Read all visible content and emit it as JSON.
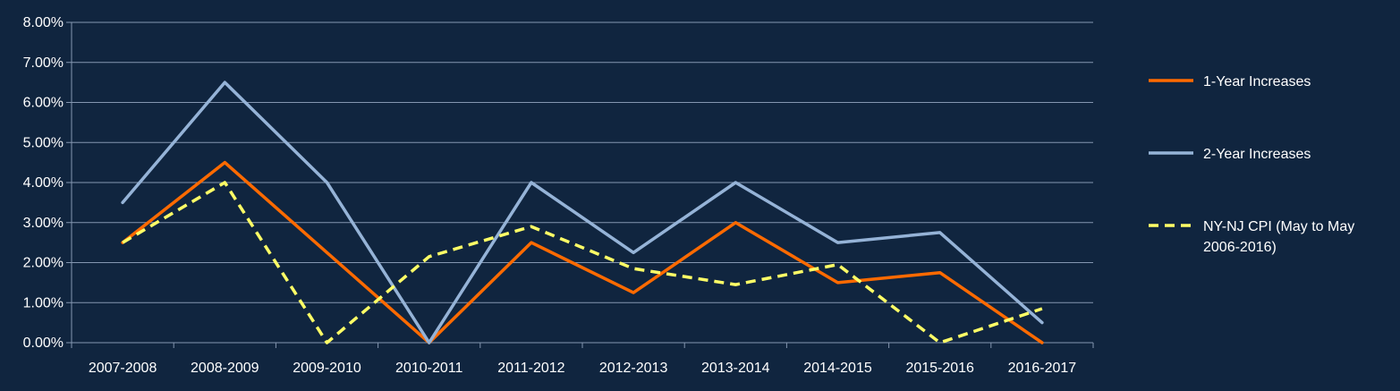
{
  "chart_data": {
    "type": "line",
    "title": "",
    "xlabel": "",
    "ylabel": "",
    "categories": [
      "2007-2008",
      "2008-2009",
      "2009-2010",
      "2010-2011",
      "2011-2012",
      "2012-2013",
      "2013-2014",
      "2014-2015",
      "2015-2016",
      "2016-2017"
    ],
    "y_ticks": [
      "0.00%",
      "1.00%",
      "2.00%",
      "3.00%",
      "4.00%",
      "5.00%",
      "6.00%",
      "7.00%",
      "8.00%"
    ],
    "ylim": [
      0,
      8
    ],
    "grid": true,
    "legend_position": "right",
    "series": [
      {
        "name": "1-Year Increases",
        "color": "#ff6a00",
        "dash": false,
        "values": [
          2.5,
          4.5,
          2.25,
          0,
          2.5,
          1.25,
          3.0,
          1.5,
          1.75,
          0
        ]
      },
      {
        "name": "2-Year Increases",
        "color": "#95b3d7",
        "dash": false,
        "values": [
          3.5,
          6.5,
          4.0,
          0,
          4.0,
          2.25,
          4.0,
          2.5,
          2.75,
          0.5
        ]
      },
      {
        "name": "NY-NJ CPI (May to May 2006-2016)",
        "legend_lines": [
          "NY-NJ CPI (May to May",
          "2006-2016)"
        ],
        "color": "#ffff66",
        "dash": true,
        "values": [
          2.5,
          4.0,
          0,
          2.15,
          2.9,
          1.85,
          1.45,
          1.95,
          0,
          0.85
        ]
      }
    ]
  }
}
